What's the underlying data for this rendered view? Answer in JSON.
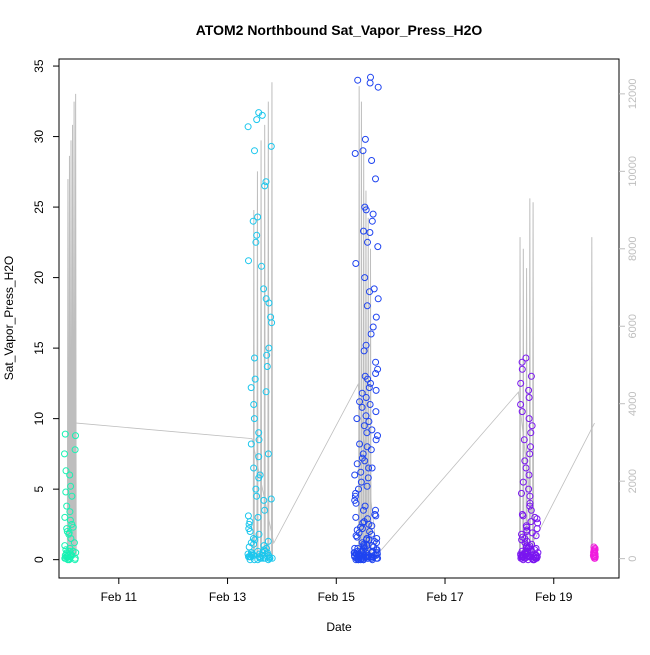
{
  "chart_data": {
    "type": "scatter",
    "title": "ATOM2 Northbound Sat_Vapor_Press_H2O",
    "xlabel": "Date",
    "ylabel": "Sat_Vapor_Press_H2O",
    "x_ticks": [
      "Feb 11",
      "Feb 13",
      "Feb 15",
      "Feb 17",
      "Feb 19"
    ],
    "x_tick_days": [
      11,
      13,
      15,
      17,
      19
    ],
    "xlim_days": [
      9.9,
      20.2
    ],
    "y_ticks": [
      0,
      5,
      10,
      15,
      20,
      25,
      30,
      35
    ],
    "ylim": [
      -1.3,
      35.5
    ],
    "y2_ticks": [
      0,
      2000,
      4000,
      6000,
      8000,
      10000,
      12000
    ],
    "y2lim": [
      -500,
      12900
    ],
    "y2_color": "#bebebe",
    "grid": false,
    "point_marker": "open-circle",
    "clusters": [
      {
        "center": 10.1,
        "spread": 0.22,
        "n": 45,
        "ymin": 0.0,
        "ymax": 9.0,
        "color": "#17f2b3",
        "values": [
          0.1,
          0.2,
          0.3,
          0.5,
          0.6,
          0.8,
          1.0,
          1.2,
          1.5,
          1.8,
          2.0,
          2.3,
          2.5,
          3.0,
          3.4,
          3.8,
          4.5,
          4.8,
          5.2,
          6.0,
          6.3,
          7.5,
          7.8,
          8.8,
          8.9,
          0.0,
          0.1,
          0.2,
          0.1,
          0.4,
          0.3,
          0.2,
          0.7,
          0.5,
          1.9,
          2.2,
          2.8,
          0.0,
          0.1,
          0.6,
          0.2,
          0.3,
          0.1,
          0.0,
          0.4
        ]
      },
      {
        "center": 13.6,
        "spread": 0.45,
        "n": 90,
        "ymin": 0.0,
        "ymax": 31.7,
        "color": "#1cc7ed",
        "values": [
          0.1,
          0.2,
          0.3,
          0.5,
          0.6,
          0.8,
          1.0,
          1.2,
          1.5,
          1.8,
          2.0,
          2.5,
          3.0,
          3.5,
          4.2,
          4.3,
          5.0,
          5.8,
          6.0,
          7.3,
          7.5,
          8.5,
          9.0,
          10.0,
          11.0,
          11.9,
          12.2,
          14.3,
          14.5,
          15.0,
          16.8,
          17.2,
          18.2,
          18.5,
          19.2,
          20.8,
          21.2,
          22.5,
          23.0,
          24.0,
          24.3,
          26.5,
          26.8,
          29.0,
          29.3,
          30.7,
          31.2,
          31.5,
          31.7,
          0.0,
          0.1,
          0.2,
          0.1,
          0.3,
          0.4,
          0.2,
          0.5,
          0.1,
          0.0,
          0.2,
          0.3,
          0.1,
          0.6,
          0.7,
          0.2,
          1.1,
          1.3,
          0.4,
          2.2,
          2.7,
          3.1,
          0.1,
          0.0,
          0.3,
          0.5,
          0.2,
          0.9,
          1.4,
          0.1,
          0.2,
          4.5,
          6.5,
          12.8,
          13.7,
          8.2,
          0.3,
          0.4,
          0.1,
          0.2,
          0.0
        ]
      },
      {
        "center": 15.55,
        "spread": 0.45,
        "n": 160,
        "ymin": 0.0,
        "ymax": 34.2,
        "color": "#1f44f0",
        "values": [
          0.1,
          0.2,
          0.3,
          0.5,
          0.6,
          0.8,
          1.0,
          1.2,
          1.5,
          1.8,
          2.0,
          2.3,
          2.6,
          3.0,
          3.5,
          4.0,
          4.7,
          5.0,
          5.5,
          6.0,
          6.5,
          7.0,
          7.5,
          8.0,
          8.5,
          9.0,
          9.5,
          10.0,
          10.5,
          11.0,
          11.5,
          12.0,
          12.5,
          13.0,
          13.5,
          14.0,
          14.8,
          15.2,
          16.0,
          16.5,
          17.2,
          18.0,
          18.5,
          19.0,
          19.2,
          20.0,
          21.0,
          22.2,
          22.5,
          23.2,
          23.3,
          24.0,
          24.5,
          24.8,
          25.0,
          27.0,
          28.3,
          28.8,
          29.0,
          29.8,
          33.5,
          33.8,
          34.0,
          34.2,
          0.0,
          0.1,
          0.2,
          0.1,
          0.3,
          0.4,
          0.2,
          0.5,
          0.1,
          0.0,
          0.2,
          0.3,
          0.1,
          0.6,
          0.7,
          0.2,
          1.1,
          1.3,
          0.4,
          2.2,
          2.7,
          3.1,
          0.1,
          0.0,
          0.3,
          0.5,
          0.2,
          0.9,
          1.4,
          0.1,
          0.2,
          4.5,
          6.5,
          3.8,
          2.9,
          0.3,
          0.4,
          0.1,
          0.2,
          0.0,
          0.8,
          1.6,
          2.4,
          3.2,
          4.2,
          5.2,
          6.2,
          7.2,
          8.2,
          9.2,
          10.2,
          11.2,
          12.2,
          13.2,
          0.5,
          0.6,
          0.7,
          0.9,
          1.0,
          1.7,
          1.9,
          2.1,
          0.2,
          0.3,
          0.1,
          0.0,
          0.4,
          0.6,
          0.8,
          1.2,
          1.4,
          0.2,
          0.1,
          0.3,
          5.8,
          6.8,
          7.8,
          8.8,
          9.8,
          10.8,
          11.8,
          12.8,
          0.1,
          0.2,
          0.0,
          0.3,
          0.5,
          1.0,
          1.5,
          2.5,
          3.5,
          0.4,
          0.6,
          0.2,
          0.1,
          0.0
        ]
      },
      {
        "center": 18.55,
        "spread": 0.32,
        "n": 95,
        "ymin": 0.0,
        "ymax": 14.3,
        "color": "#7a16f0",
        "values": [
          0.1,
          0.2,
          0.3,
          0.5,
          0.6,
          0.8,
          1.0,
          1.2,
          1.5,
          1.8,
          2.0,
          2.3,
          2.6,
          3.0,
          3.5,
          4.0,
          4.7,
          5.0,
          5.5,
          6.0,
          6.5,
          7.0,
          7.5,
          8.0,
          8.5,
          9.0,
          9.5,
          10.0,
          10.5,
          11.0,
          11.5,
          12.0,
          12.5,
          13.0,
          13.5,
          14.0,
          14.3,
          0.0,
          0.1,
          0.2,
          0.1,
          0.3,
          0.4,
          0.2,
          0.5,
          0.1,
          0.0,
          0.2,
          0.3,
          0.1,
          0.6,
          0.7,
          0.2,
          1.1,
          1.3,
          0.4,
          2.2,
          2.7,
          3.1,
          0.1,
          0.0,
          0.3,
          0.5,
          0.2,
          0.9,
          1.4,
          0.1,
          0.2,
          4.5,
          3.8,
          2.9,
          0.3,
          0.4,
          0.1,
          0.2,
          0.0,
          0.8,
          1.6,
          2.4,
          3.2,
          0.5,
          0.6,
          0.7,
          0.9,
          1.0,
          1.7,
          1.9,
          2.1,
          0.2,
          0.3,
          0.1,
          0.0,
          0.4,
          0.6,
          0.8
        ]
      },
      {
        "center": 19.75,
        "spread": 0.04,
        "n": 18,
        "ymin": 0.0,
        "ymax": 0.9,
        "color": "#f01cde",
        "values": [
          0.1,
          0.2,
          0.3,
          0.4,
          0.5,
          0.6,
          0.7,
          0.8,
          0.9,
          0.1,
          0.2,
          0.3,
          0.4,
          0.5,
          0.6,
          0.7,
          0.3,
          0.2
        ]
      }
    ],
    "secondary_trace": {
      "color": "#bebebe",
      "description_units": "y2",
      "segments": [
        {
          "x0": 10.05,
          "x1": 10.22,
          "peaks": [
            9800,
            10400,
            10800,
            11200,
            11800,
            12000
          ]
        },
        {
          "x0": 13.45,
          "x1": 13.85,
          "peaks": [
            9000,
            10000,
            10800,
            11200,
            11800,
            12300
          ]
        },
        {
          "x0": 15.4,
          "x1": 15.65,
          "peaks": [
            12200,
            11800,
            10500,
            9500,
            8800,
            8000
          ]
        },
        {
          "x0": 18.35,
          "x1": 18.65,
          "peaks": [
            8300,
            8000,
            7500,
            9300,
            9200
          ]
        },
        {
          "x0": 19.65,
          "x1": 19.75,
          "peaks": [
            8300
          ]
        }
      ],
      "bridge": [
        [
          10.22,
          3500
        ],
        [
          13.45,
          3100
        ],
        [
          13.85,
          400
        ],
        [
          15.4,
          4500
        ],
        [
          15.75,
          100
        ],
        [
          18.35,
          4300
        ],
        [
          18.65,
          500
        ],
        [
          19.75,
          3500
        ]
      ]
    }
  }
}
